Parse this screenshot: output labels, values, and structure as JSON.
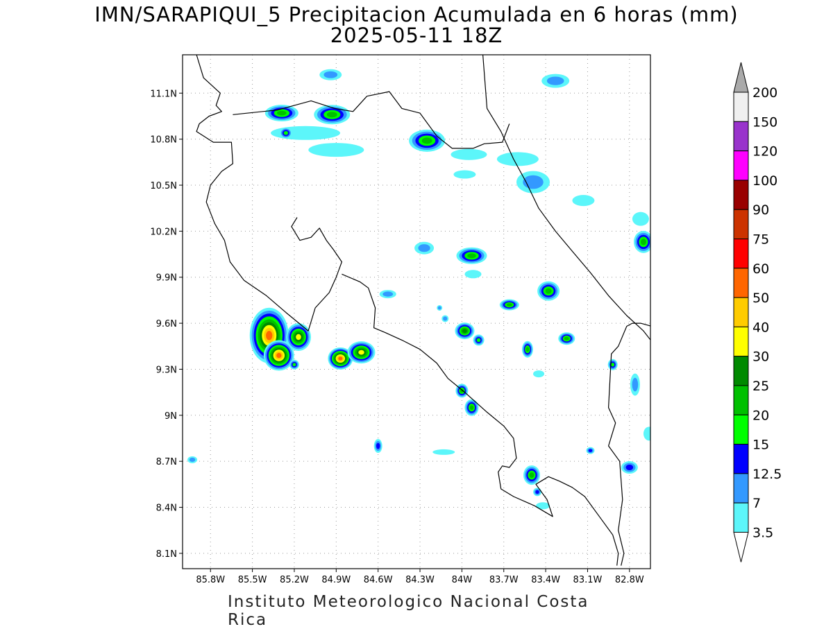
{
  "title": {
    "line1": "IMN/SARAPIQUI_5 Precipitacion Acumulada en 6 horas (mm)",
    "line2": "2025-05-11 18Z"
  },
  "footer": "Instituto Meteorologico Nacional Costa Rica",
  "map": {
    "lon_range": [
      -86.0,
      -82.65
    ],
    "lat_range": [
      8.0,
      11.35
    ],
    "lat_ticks": [
      "11.1N",
      "10.8N",
      "10.5N",
      "10.2N",
      "9.9N",
      "9.6N",
      "9.3N",
      "9N",
      "8.7N",
      "8.4N",
      "8.1N"
    ],
    "lat_values": [
      11.1,
      10.8,
      10.5,
      10.2,
      9.9,
      9.6,
      9.3,
      9.0,
      8.7,
      8.4,
      8.1
    ],
    "lon_ticks": [
      "85.8W",
      "85.5W",
      "85.2W",
      "84.9W",
      "84.6W",
      "84.3W",
      "84W",
      "83.7W",
      "83.4W",
      "83.1W",
      "82.8W"
    ],
    "lon_values": [
      -85.8,
      -85.5,
      -85.2,
      -84.9,
      -84.6,
      -84.3,
      -84.0,
      -83.7,
      -83.4,
      -83.1,
      -82.8
    ],
    "gridlines": true
  },
  "colorbar": {
    "levels": [
      "3.5",
      "7",
      "12.5",
      "15",
      "20",
      "25",
      "30",
      "40",
      "50",
      "60",
      "75",
      "90",
      "100",
      "120",
      "150",
      "200"
    ],
    "colors": [
      "#ffffff",
      "#5cf6fa",
      "#3399ff",
      "#0000ff",
      "#00ff00",
      "#00c000",
      "#008a00",
      "#ffff00",
      "#ffcc00",
      "#ff6600",
      "#ff0000",
      "#cc3300",
      "#990000",
      "#ff00ff",
      "#9933cc",
      "#f0f0f0",
      "#aaaaaa"
    ],
    "units": "mm"
  },
  "cells": [
    {
      "lon": -85.38,
      "lat": 9.52,
      "rx": 28,
      "ry": 40,
      "max": 60
    },
    {
      "lon": -85.31,
      "lat": 9.39,
      "rx": 22,
      "ry": 22,
      "max": 60
    },
    {
      "lon": -85.17,
      "lat": 9.51,
      "rx": 18,
      "ry": 20,
      "max": 40
    },
    {
      "lon": -85.2,
      "lat": 9.33,
      "rx": 7,
      "ry": 7,
      "max": 20
    },
    {
      "lon": -84.87,
      "lat": 9.37,
      "rx": 18,
      "ry": 16,
      "max": 60
    },
    {
      "lon": -84.72,
      "lat": 9.41,
      "rx": 20,
      "ry": 16,
      "max": 40
    },
    {
      "lon": -85.29,
      "lat": 10.97,
      "rx": 24,
      "ry": 12,
      "max": 25
    },
    {
      "lon": -85.26,
      "lat": 10.84,
      "rx": 9,
      "ry": 8,
      "max": 20
    },
    {
      "lon": -84.93,
      "lat": 10.96,
      "rx": 26,
      "ry": 14,
      "max": 25
    },
    {
      "lon": -84.94,
      "lat": 11.22,
      "rx": 16,
      "ry": 8,
      "max": 12.5
    },
    {
      "lon": -84.25,
      "lat": 10.79,
      "rx": 26,
      "ry": 16,
      "max": 25
    },
    {
      "lon": -83.33,
      "lat": 11.18,
      "rx": 20,
      "ry": 10,
      "max": 12.5
    },
    {
      "lon": -83.49,
      "lat": 10.52,
      "rx": 24,
      "ry": 16,
      "max": 12.5
    },
    {
      "lon": -83.13,
      "lat": 10.4,
      "rx": 16,
      "ry": 8,
      "max": 7
    },
    {
      "lon": -82.7,
      "lat": 10.13,
      "rx": 14,
      "ry": 16,
      "max": 25
    },
    {
      "lon": -84.27,
      "lat": 10.09,
      "rx": 14,
      "ry": 9,
      "max": 12.5
    },
    {
      "lon": -83.93,
      "lat": 10.04,
      "rx": 22,
      "ry": 12,
      "max": 25
    },
    {
      "lon": -84.53,
      "lat": 9.79,
      "rx": 12,
      "ry": 6,
      "max": 12.5
    },
    {
      "lon": -83.66,
      "lat": 9.72,
      "rx": 14,
      "ry": 8,
      "max": 25
    },
    {
      "lon": -83.38,
      "lat": 9.81,
      "rx": 16,
      "ry": 14,
      "max": 25
    },
    {
      "lon": -83.98,
      "lat": 9.55,
      "rx": 14,
      "ry": 12,
      "max": 30
    },
    {
      "lon": -83.88,
      "lat": 9.49,
      "rx": 8,
      "ry": 8,
      "max": 20
    },
    {
      "lon": -83.53,
      "lat": 9.43,
      "rx": 8,
      "ry": 12,
      "max": 25
    },
    {
      "lon": -83.25,
      "lat": 9.5,
      "rx": 12,
      "ry": 9,
      "max": 25
    },
    {
      "lon": -84.0,
      "lat": 9.16,
      "rx": 9,
      "ry": 10,
      "max": 25
    },
    {
      "lon": -83.93,
      "lat": 9.05,
      "rx": 10,
      "ry": 12,
      "max": 25
    },
    {
      "lon": -84.6,
      "lat": 8.8,
      "rx": 6,
      "ry": 10,
      "max": 15
    },
    {
      "lon": -83.5,
      "lat": 8.61,
      "rx": 12,
      "ry": 14,
      "max": 25
    },
    {
      "lon": -83.46,
      "lat": 8.5,
      "rx": 6,
      "ry": 6,
      "max": 15
    },
    {
      "lon": -82.8,
      "lat": 8.66,
      "rx": 12,
      "ry": 9,
      "max": 15
    },
    {
      "lon": -82.92,
      "lat": 9.33,
      "rx": 7,
      "ry": 8,
      "max": 20
    },
    {
      "lon": -82.76,
      "lat": 9.2,
      "rx": 7,
      "ry": 16,
      "max": 12.5
    },
    {
      "lon": -84.12,
      "lat": 9.63,
      "rx": 5,
      "ry": 5,
      "max": 12.5
    },
    {
      "lon": -84.16,
      "lat": 9.7,
      "rx": 4,
      "ry": 4,
      "max": 12.5
    },
    {
      "lon": -83.08,
      "lat": 8.77,
      "rx": 6,
      "ry": 5,
      "max": 15
    },
    {
      "lon": -85.93,
      "lat": 8.71,
      "rx": 7,
      "ry": 5,
      "max": 12.5
    }
  ],
  "light_patches": [
    {
      "lon": -85.12,
      "lat": 10.84,
      "rx": 50,
      "ry": 10
    },
    {
      "lon": -84.9,
      "lat": 10.73,
      "rx": 40,
      "ry": 10
    },
    {
      "lon": -83.95,
      "lat": 10.7,
      "rx": 26,
      "ry": 8
    },
    {
      "lon": -83.6,
      "lat": 10.67,
      "rx": 30,
      "ry": 10
    },
    {
      "lon": -83.98,
      "lat": 10.57,
      "rx": 16,
      "ry": 6
    },
    {
      "lon": -82.72,
      "lat": 10.28,
      "rx": 12,
      "ry": 10
    },
    {
      "lon": -83.92,
      "lat": 9.92,
      "rx": 12,
      "ry": 6
    },
    {
      "lon": -82.66,
      "lat": 8.88,
      "rx": 8,
      "ry": 10
    },
    {
      "lon": -84.13,
      "lat": 8.76,
      "rx": 16,
      "ry": 4
    },
    {
      "lon": -83.45,
      "lat": 9.27,
      "rx": 8,
      "ry": 5
    },
    {
      "lon": -83.42,
      "lat": 8.41,
      "rx": 10,
      "ry": 5
    }
  ],
  "coastline": [
    [
      [
        -85.9,
        11.35
      ],
      [
        -85.85,
        11.2
      ],
      [
        -85.73,
        11.1
      ],
      [
        -85.76,
        11.02
      ],
      [
        -85.72,
        10.98
      ],
      [
        -85.81,
        10.95
      ],
      [
        -85.88,
        10.9
      ],
      [
        -85.9,
        10.85
      ],
      [
        -85.78,
        10.78
      ],
      [
        -85.65,
        10.78
      ],
      [
        -85.64,
        10.64
      ],
      [
        -85.72,
        10.59
      ],
      [
        -85.8,
        10.5
      ],
      [
        -85.83,
        10.39
      ],
      [
        -85.77,
        10.25
      ],
      [
        -85.7,
        10.14
      ],
      [
        -85.66,
        10.0
      ],
      [
        -85.56,
        9.88
      ],
      [
        -85.4,
        9.78
      ],
      [
        -85.26,
        9.67
      ],
      [
        -85.1,
        9.55
      ],
      [
        -85.05,
        9.7
      ],
      [
        -84.95,
        9.8
      ],
      [
        -84.9,
        9.9
      ],
      [
        -84.86,
        10.0
      ],
      [
        -84.92,
        10.08
      ],
      [
        -84.97,
        10.14
      ],
      [
        -85.02,
        10.22
      ],
      [
        -85.08,
        10.16
      ],
      [
        -85.16,
        10.14
      ],
      [
        -85.22,
        10.23
      ],
      [
        -85.18,
        10.29
      ]
    ],
    [
      [
        -84.86,
        9.92
      ],
      [
        -84.73,
        9.87
      ],
      [
        -84.67,
        9.83
      ],
      [
        -84.62,
        9.7
      ],
      [
        -84.63,
        9.57
      ],
      [
        -84.55,
        9.54
      ],
      [
        -84.43,
        9.49
      ],
      [
        -84.3,
        9.43
      ],
      [
        -84.18,
        9.34
      ],
      [
        -84.1,
        9.24
      ],
      [
        -83.98,
        9.15
      ],
      [
        -83.82,
        9.02
      ],
      [
        -83.7,
        8.93
      ],
      [
        -83.63,
        8.85
      ],
      [
        -83.61,
        8.72
      ],
      [
        -83.66,
        8.66
      ],
      [
        -83.71,
        8.67
      ],
      [
        -83.74,
        8.63
      ],
      [
        -83.72,
        8.52
      ],
      [
        -83.63,
        8.47
      ],
      [
        -83.48,
        8.41
      ],
      [
        -83.35,
        8.34
      ],
      [
        -83.39,
        8.45
      ],
      [
        -83.47,
        8.55
      ],
      [
        -83.38,
        8.6
      ],
      [
        -83.3,
        8.57
      ],
      [
        -83.21,
        8.53
      ],
      [
        -83.12,
        8.47
      ],
      [
        -83.0,
        8.32
      ],
      [
        -82.92,
        8.22
      ],
      [
        -82.88,
        8.1
      ],
      [
        -82.89,
        8.02
      ]
    ],
    [
      [
        -84.68,
        11.08
      ],
      [
        -84.52,
        11.11
      ],
      [
        -84.43,
        11.0
      ],
      [
        -84.3,
        10.97
      ],
      [
        -84.18,
        10.82
      ],
      [
        -84.07,
        10.74
      ],
      [
        -83.92,
        10.74
      ],
      [
        -83.84,
        10.77
      ],
      [
        -83.71,
        10.78
      ],
      [
        -83.66,
        10.9
      ]
    ],
    [
      [
        -83.85,
        11.35
      ],
      [
        -83.82,
        11.0
      ],
      [
        -83.72,
        10.85
      ],
      [
        -83.63,
        10.67
      ],
      [
        -83.54,
        10.52
      ],
      [
        -83.45,
        10.35
      ],
      [
        -83.33,
        10.2
      ],
      [
        -83.21,
        10.07
      ],
      [
        -83.08,
        9.93
      ],
      [
        -82.95,
        9.78
      ],
      [
        -82.82,
        9.65
      ],
      [
        -82.7,
        9.55
      ],
      [
        -82.64,
        9.48
      ]
    ],
    [
      [
        -82.64,
        9.58
      ],
      [
        -82.72,
        9.6
      ],
      [
        -82.78,
        9.6
      ],
      [
        -82.82,
        9.58
      ],
      [
        -82.88,
        9.45
      ],
      [
        -82.93,
        9.4
      ],
      [
        -82.95,
        9.05
      ],
      [
        -82.9,
        8.95
      ],
      [
        -82.95,
        8.8
      ],
      [
        -82.87,
        8.7
      ],
      [
        -82.85,
        8.45
      ],
      [
        -82.88,
        8.25
      ],
      [
        -82.84,
        8.1
      ],
      [
        -82.86,
        8.02
      ]
    ],
    [
      [
        -85.64,
        10.96
      ],
      [
        -85.32,
        10.99
      ],
      [
        -85.08,
        11.05
      ],
      [
        -84.91,
        11.0
      ],
      [
        -84.78,
        10.98
      ],
      [
        -84.68,
        11.08
      ]
    ]
  ]
}
